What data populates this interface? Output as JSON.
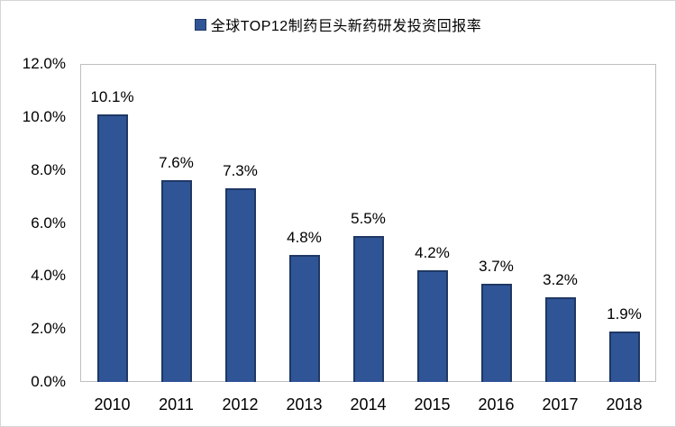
{
  "chart_data": {
    "type": "bar",
    "title": "全球TOP12制药巨头新药研发投资回报率",
    "legend": "全球TOP12制药巨头新药研发投资回报率",
    "legend_position": "top-center",
    "categories": [
      "2010",
      "2011",
      "2012",
      "2013",
      "2014",
      "2015",
      "2016",
      "2017",
      "2018"
    ],
    "values": [
      10.1,
      7.6,
      7.3,
      4.8,
      5.5,
      4.2,
      3.7,
      3.2,
      1.9
    ],
    "value_labels": [
      "10.1%",
      "7.6%",
      "7.3%",
      "4.8%",
      "5.5%",
      "4.2%",
      "3.7%",
      "3.2%",
      "1.9%"
    ],
    "xlabel": "",
    "ylabel": "",
    "ylim": [
      0,
      12
    ],
    "y_ticks": [
      {
        "label": "0.0%",
        "value": 0
      },
      {
        "label": "2.0%",
        "value": 2
      },
      {
        "label": "4.0%",
        "value": 4
      },
      {
        "label": "6.0%",
        "value": 6
      },
      {
        "label": "8.0%",
        "value": 8
      },
      {
        "label": "10.0%",
        "value": 10
      },
      {
        "label": "12.0%",
        "value": 12
      }
    ],
    "grid": "off",
    "colors": {
      "bar_fill": "#2F5597",
      "bar_border": "#1F3864",
      "plot_border": "#BFBFBF",
      "text": "#000000"
    }
  }
}
